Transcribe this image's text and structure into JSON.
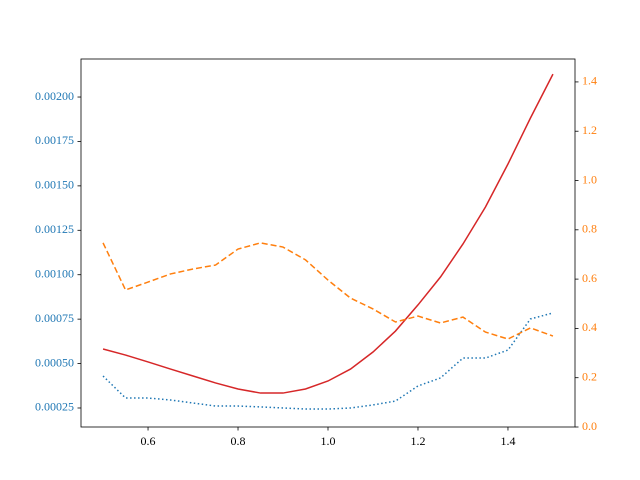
{
  "chart_data": {
    "type": "line",
    "x": [
      0.5,
      0.55,
      0.6,
      0.65,
      0.7,
      0.75,
      0.8,
      0.85,
      0.9,
      0.95,
      1.0,
      1.05,
      1.1,
      1.15,
      1.2,
      1.25,
      1.3,
      1.35,
      1.4,
      1.45,
      1.5
    ],
    "xlim": [
      0.451,
      1.549
    ],
    "xticks": [
      {
        "value": 0.6,
        "label": "0.6"
      },
      {
        "value": 0.8,
        "label": "0.8"
      },
      {
        "value": 1.0,
        "label": "1.0"
      },
      {
        "value": 1.2,
        "label": "1.2"
      },
      {
        "value": 1.4,
        "label": "1.4"
      }
    ],
    "ylim": [
      0.000143,
      0.002214
    ],
    "yticks": [
      {
        "value": 0.00025,
        "label": "0.00025"
      },
      {
        "value": 0.0005,
        "label": "0.00050"
      },
      {
        "value": 0.00075,
        "label": "0.00075"
      },
      {
        "value": 0.001,
        "label": "0.00100"
      },
      {
        "value": 0.00125,
        "label": "0.00125"
      },
      {
        "value": 0.0015,
        "label": "0.00150"
      },
      {
        "value": 0.00175,
        "label": "0.00175"
      },
      {
        "value": 0.002,
        "label": "0.00200"
      }
    ],
    "y_tick_color": "#1f77b4",
    "y2lim": [
      0,
      1.493
    ],
    "y2ticks": [
      {
        "value": 0,
        "label": "0.0"
      },
      {
        "value": 0.2,
        "label": "0.2"
      },
      {
        "value": 0.4,
        "label": "0.4"
      },
      {
        "value": 0.6,
        "label": "0.6"
      },
      {
        "value": 0.8,
        "label": "0.8"
      },
      {
        "value": 1.0,
        "label": "1.0"
      },
      {
        "value": 1.2,
        "label": "1.2"
      },
      {
        "value": 1.4,
        "label": "1.4"
      }
    ],
    "y2_tick_color": "#ff7f0e",
    "series": [
      {
        "color": "#1f77b4",
        "linestyle": "dotted",
        "axis": "y",
        "values": [
          0.00043,
          0.000306,
          0.000306,
          0.000295,
          0.000278,
          0.000261,
          0.000261,
          0.000256,
          0.00025,
          0.000244,
          0.000244,
          0.00025,
          0.000267,
          0.000289,
          0.000374,
          0.000419,
          0.000531,
          0.000531,
          0.000576,
          0.000751,
          0.000785
        ]
      },
      {
        "color": "#d62728",
        "linestyle": "solid",
        "axis": "y",
        "values": [
          0.000582,
          0.000548,
          0.000509,
          0.000469,
          0.00043,
          0.000391,
          0.000357,
          0.000334,
          0.000334,
          0.000357,
          0.000402,
          0.000469,
          0.000565,
          0.000683,
          0.00083,
          0.000987,
          0.001173,
          0.001381,
          0.001623,
          0.001882,
          0.002129
        ]
      },
      {
        "color": "#ff7f0e",
        "linestyle": "dashed",
        "axis": "y2",
        "values": [
          0.747,
          0.556,
          0.588,
          0.621,
          0.641,
          0.657,
          0.722,
          0.747,
          0.73,
          0.678,
          0.596,
          0.523,
          0.479,
          0.426,
          0.45,
          0.422,
          0.446,
          0.385,
          0.357,
          0.402,
          0.369
        ]
      }
    ]
  }
}
